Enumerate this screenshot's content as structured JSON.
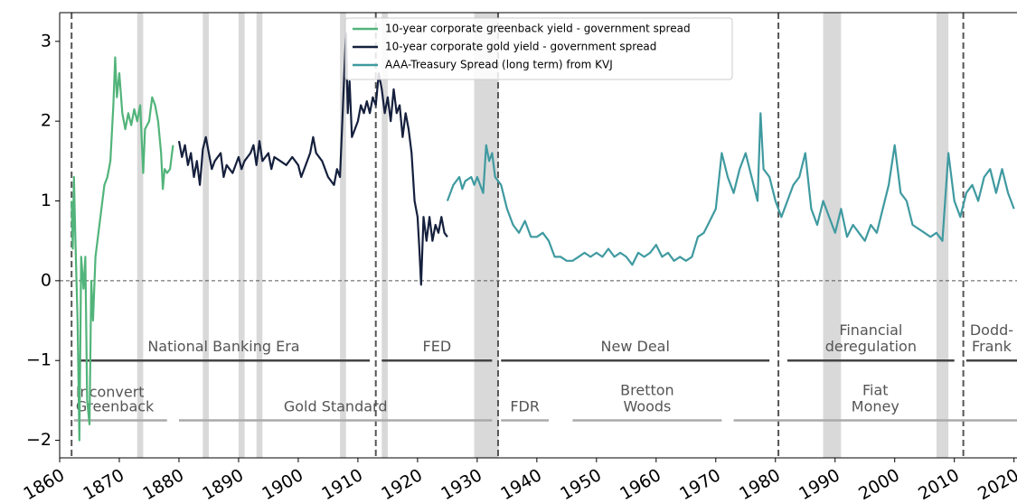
{
  "chart_data": {
    "type": "line",
    "xlim": [
      1860,
      2020.5
    ],
    "ylim": [
      -2.22,
      3.36
    ],
    "xticks": [
      1860,
      1870,
      1880,
      1890,
      1900,
      1910,
      1920,
      1930,
      1940,
      1950,
      1960,
      1970,
      1980,
      1990,
      2000,
      2010,
      2020
    ],
    "yticks": [
      {
        "value": -2,
        "label": "−2"
      },
      {
        "value": -1,
        "label": "−1"
      },
      0,
      1,
      2,
      3
    ],
    "legend": "upper center",
    "zero_line": 0,
    "regime_lines": [
      1862,
      1913,
      1933.5,
      1980.5,
      2011.5
    ],
    "shaded_periods": [
      [
        1873,
        1874
      ],
      [
        1884,
        1885
      ],
      [
        1890,
        1891
      ],
      [
        1893,
        1894
      ],
      [
        1907,
        1908
      ],
      [
        1914,
        1915
      ],
      [
        1929.5,
        1933.6
      ],
      [
        1988,
        1991
      ],
      [
        2007,
        2009
      ]
    ],
    "eras": [
      {
        "label": [
          "National Banking Era"
        ],
        "start": 1863,
        "end": 1912,
        "y": -1,
        "color": "#444444"
      },
      {
        "label": [
          "FED"
        ],
        "start": 1914,
        "end": 1932.5,
        "y": -1,
        "color": "#444444"
      },
      {
        "label": [
          "New Deal"
        ],
        "start": 1934,
        "end": 1979,
        "y": -1,
        "color": "#444444"
      },
      {
        "label": [
          "Financial",
          "deregulation"
        ],
        "start": 1982,
        "end": 2010,
        "y": -1,
        "color": "#444444"
      },
      {
        "label": [
          "Dodd-",
          "Frank"
        ],
        "start": 2012,
        "end": 2020.5,
        "y": -1,
        "color": "#444444"
      },
      {
        "label": [
          "Inconvert",
          "Greenback"
        ],
        "start": 1862.4,
        "end": 1878,
        "y": -1.75,
        "color": "#aaaaaa"
      },
      {
        "label": [
          "Gold Standard"
        ],
        "start": 1880,
        "end": 1932.5,
        "y": -1.75,
        "color": "#aaaaaa"
      },
      {
        "label": [
          "FDR"
        ],
        "start": 1934,
        "end": 1942,
        "y": -1.75,
        "color": "#aaaaaa"
      },
      {
        "label": [
          "Bretton",
          "Woods"
        ],
        "start": 1946,
        "end": 1971,
        "y": -1.75,
        "color": "#aaaaaa"
      },
      {
        "label": [
          "Fiat",
          "Money"
        ],
        "start": 1973,
        "end": 2020.5,
        "y": -1.75,
        "color": "#aaaaaa"
      }
    ],
    "series": [
      {
        "name": "10-year corporate greenback yield - government spread",
        "color": "#52b47a",
        "x": [
          1862.0,
          1862.2,
          1862.4,
          1862.6,
          1863,
          1863.3,
          1863.6,
          1864,
          1864.3,
          1864.6,
          1865,
          1865.3,
          1865.6,
          1866,
          1866.5,
          1867,
          1867.5,
          1868,
          1868.5,
          1869,
          1869.3,
          1869.6,
          1870,
          1870.5,
          1871,
          1871.5,
          1872,
          1872.5,
          1873,
          1873.5,
          1874,
          1874.3,
          1875,
          1875.5,
          1876,
          1876.5,
          1877,
          1877.3,
          1877.6,
          1878,
          1878.5,
          1879
        ],
        "values": [
          1.0,
          0.4,
          1.3,
          0.6,
          -0.5,
          -2.0,
          0.3,
          -0.1,
          0.3,
          -1.5,
          -1.8,
          0.0,
          -0.5,
          0.3,
          0.6,
          0.9,
          1.2,
          1.3,
          1.5,
          2.2,
          2.8,
          2.3,
          2.6,
          2.1,
          1.9,
          2.1,
          1.95,
          2.15,
          2.0,
          2.2,
          1.35,
          1.9,
          2.0,
          2.3,
          2.2,
          2.0,
          1.6,
          1.15,
          1.4,
          1.35,
          1.4,
          1.7
        ]
      },
      {
        "name": "10-year corporate gold yield - government spread",
        "color": "#15203d",
        "x": [
          1880,
          1880.5,
          1881,
          1881.5,
          1882,
          1882.5,
          1883,
          1883.5,
          1884,
          1884.5,
          1885,
          1885.5,
          1886,
          1887,
          1887.5,
          1888,
          1889,
          1890,
          1890.5,
          1891,
          1892,
          1892.5,
          1893,
          1893.5,
          1894,
          1895,
          1895.5,
          1896,
          1897,
          1898,
          1899,
          1900,
          1900.5,
          1901,
          1902,
          1902.5,
          1903,
          1904,
          1905,
          1906,
          1906.5,
          1907,
          1907.5,
          1908,
          1908.3,
          1908.6,
          1909,
          1909.5,
          1910,
          1910.5,
          1911,
          1911.5,
          1912,
          1912.5,
          1913,
          1913.5,
          1914,
          1914.5,
          1915,
          1915.5,
          1916,
          1916.5,
          1917,
          1917.5,
          1918,
          1918.5,
          1919,
          1919.5,
          1920,
          1920.3,
          1920.6,
          1921,
          1921.5,
          1922,
          1922.5,
          1923,
          1923.5,
          1924,
          1924.5,
          1925
        ],
        "values": [
          1.75,
          1.55,
          1.7,
          1.45,
          1.6,
          1.3,
          1.5,
          1.2,
          1.65,
          1.8,
          1.6,
          1.4,
          1.5,
          1.6,
          1.3,
          1.45,
          1.35,
          1.55,
          1.4,
          1.5,
          1.6,
          1.7,
          1.45,
          1.75,
          1.5,
          1.6,
          1.4,
          1.55,
          1.5,
          1.45,
          1.55,
          1.45,
          1.3,
          1.4,
          1.6,
          1.8,
          1.6,
          1.5,
          1.3,
          1.2,
          1.4,
          1.3,
          2.2,
          3.1,
          2.1,
          2.5,
          1.8,
          1.9,
          2.0,
          2.2,
          2.1,
          2.25,
          2.1,
          2.3,
          2.2,
          2.6,
          2.4,
          2.1,
          2.3,
          2.0,
          2.4,
          2.1,
          2.2,
          1.8,
          2.1,
          1.9,
          1.6,
          1.0,
          0.8,
          0.4,
          -0.05,
          0.8,
          0.5,
          0.8,
          0.5,
          0.7,
          0.6,
          0.8,
          0.6,
          0.55
        ]
      },
      {
        "name": "AAA-Treasury Spread (long term) from KVJ",
        "color": "#3f9aa0",
        "x": [
          1925,
          1926,
          1927,
          1927.5,
          1928,
          1929,
          1929.5,
          1930,
          1931,
          1931.5,
          1932,
          1932.5,
          1933,
          1934,
          1935,
          1936,
          1937,
          1938,
          1939,
          1940,
          1941,
          1942,
          1943,
          1944,
          1945,
          1946,
          1947,
          1948,
          1949,
          1950,
          1951,
          1952,
          1953,
          1954,
          1955,
          1956,
          1957,
          1958,
          1959,
          1960,
          1961,
          1962,
          1963,
          1964,
          1965,
          1966,
          1967,
          1968,
          1969,
          1970,
          1971,
          1972,
          1973,
          1974,
          1975,
          1976,
          1977,
          1977.5,
          1978,
          1979,
          1980,
          1981,
          1982,
          1983,
          1984,
          1985,
          1986,
          1987,
          1988,
          1989,
          1990,
          1991,
          1992,
          1993,
          1994,
          1995,
          1996,
          1997,
          1998,
          1999,
          2000,
          2001,
          2002,
          2003,
          2004,
          2005,
          2006,
          2007,
          2008,
          2009,
          2010,
          2011,
          2012,
          2013,
          2014,
          2015,
          2016,
          2017,
          2018,
          2019,
          2020
        ],
        "values": [
          1.0,
          1.2,
          1.3,
          1.15,
          1.25,
          1.3,
          1.2,
          1.3,
          1.1,
          1.7,
          1.5,
          1.6,
          1.3,
          1.2,
          0.9,
          0.7,
          0.6,
          0.75,
          0.55,
          0.55,
          0.6,
          0.5,
          0.3,
          0.3,
          0.25,
          0.25,
          0.3,
          0.35,
          0.3,
          0.35,
          0.3,
          0.4,
          0.3,
          0.35,
          0.3,
          0.2,
          0.35,
          0.3,
          0.35,
          0.45,
          0.3,
          0.35,
          0.25,
          0.3,
          0.25,
          0.3,
          0.55,
          0.6,
          0.75,
          0.9,
          1.6,
          1.3,
          1.1,
          1.4,
          1.6,
          1.3,
          1.0,
          2.1,
          1.4,
          1.3,
          1.0,
          0.8,
          1.0,
          1.2,
          1.3,
          1.6,
          0.9,
          0.7,
          1.0,
          0.8,
          0.6,
          0.9,
          0.55,
          0.7,
          0.6,
          0.5,
          0.7,
          0.6,
          0.9,
          1.2,
          1.7,
          1.1,
          1.0,
          0.7,
          0.65,
          0.6,
          0.55,
          0.6,
          0.5,
          1.6,
          1.0,
          0.8,
          1.1,
          1.2,
          1.0,
          1.3,
          1.4,
          1.1,
          1.4,
          1.1,
          0.9
        ]
      }
    ]
  }
}
